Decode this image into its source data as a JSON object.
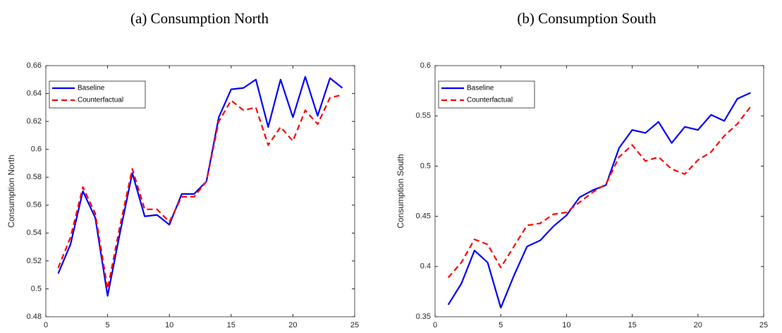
{
  "chart_data": [
    {
      "type": "line",
      "title": "(a) Consumption North",
      "ylabel": "Consumption North",
      "x": [
        1,
        2,
        3,
        4,
        5,
        6,
        7,
        8,
        9,
        10,
        11,
        12,
        13,
        14,
        15,
        16,
        17,
        18,
        19,
        20,
        21,
        22,
        23,
        24
      ],
      "xlim": [
        0,
        25
      ],
      "xticks": [
        0,
        5,
        10,
        15,
        20,
        25
      ],
      "ylim": [
        0.48,
        0.66
      ],
      "yticks": [
        0.48,
        0.5,
        0.52,
        0.54,
        0.56,
        0.58,
        0.6,
        0.62,
        0.64,
        0.66
      ],
      "legend": "upper left",
      "series": [
        {
          "name": "Baseline",
          "color": "#0000ff",
          "linestyle": "solid",
          "values": [
            0.511,
            0.532,
            0.57,
            0.551,
            0.495,
            0.54,
            0.583,
            0.552,
            0.553,
            0.546,
            0.568,
            0.568,
            0.577,
            0.623,
            0.643,
            0.644,
            0.65,
            0.616,
            0.65,
            0.623,
            0.652,
            0.624,
            0.651,
            0.644
          ]
        },
        {
          "name": "Counterfactual",
          "color": "#ff0000",
          "linestyle": "dashed",
          "values": [
            0.515,
            0.537,
            0.573,
            0.554,
            0.5,
            0.545,
            0.586,
            0.557,
            0.557,
            0.548,
            0.566,
            0.566,
            0.577,
            0.62,
            0.635,
            0.628,
            0.63,
            0.603,
            0.616,
            0.606,
            0.628,
            0.618,
            0.637,
            0.639
          ]
        }
      ]
    },
    {
      "type": "line",
      "title": "(b) Consumption South",
      "ylabel": "Consumption South",
      "x": [
        1,
        2,
        3,
        4,
        5,
        6,
        7,
        8,
        9,
        10,
        11,
        12,
        13,
        14,
        15,
        16,
        17,
        18,
        19,
        20,
        21,
        22,
        23,
        24
      ],
      "xlim": [
        0,
        25
      ],
      "xticks": [
        0,
        5,
        10,
        15,
        20,
        25
      ],
      "ylim": [
        0.35,
        0.6
      ],
      "yticks": [
        0.35,
        0.4,
        0.45,
        0.5,
        0.55,
        0.6
      ],
      "legend": "upper left",
      "series": [
        {
          "name": "Baseline",
          "color": "#0000ff",
          "linestyle": "solid",
          "values": [
            0.362,
            0.383,
            0.416,
            0.404,
            0.359,
            0.391,
            0.42,
            0.426,
            0.44,
            0.451,
            0.469,
            0.476,
            0.481,
            0.518,
            0.536,
            0.533,
            0.544,
            0.523,
            0.539,
            0.536,
            0.551,
            0.545,
            0.567,
            0.573
          ]
        },
        {
          "name": "Counterfactual",
          "color": "#ff0000",
          "linestyle": "dashed",
          "values": [
            0.389,
            0.404,
            0.427,
            0.422,
            0.399,
            0.42,
            0.441,
            0.443,
            0.452,
            0.454,
            0.464,
            0.474,
            0.482,
            0.509,
            0.521,
            0.505,
            0.509,
            0.497,
            0.492,
            0.506,
            0.514,
            0.53,
            0.542,
            0.559
          ]
        }
      ]
    }
  ]
}
